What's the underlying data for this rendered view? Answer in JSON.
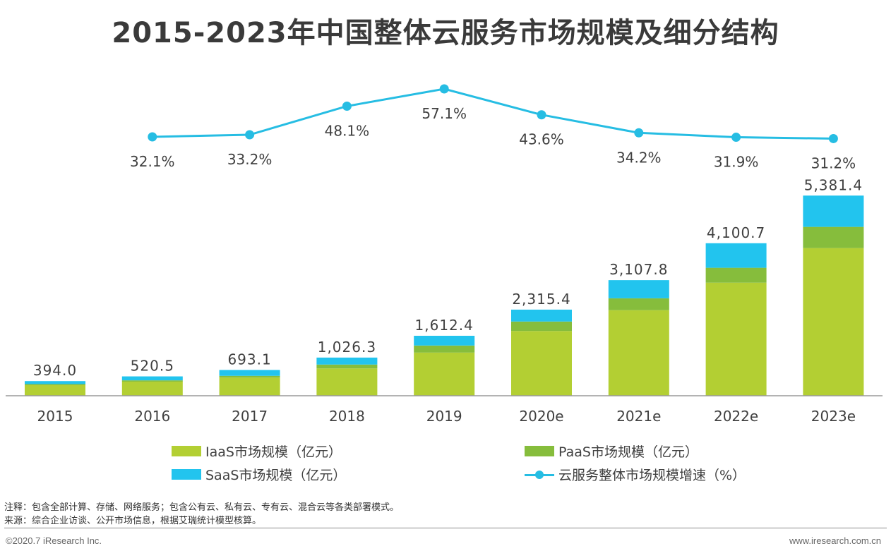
{
  "title": "2015-2023年中国整体云服务市场规模及细分结构",
  "colors": {
    "iaas": "#b3cf33",
    "paas": "#86bd3c",
    "saas": "#22c4ee",
    "growth": "#26bde3",
    "axis": "#9a9a9a",
    "text": "#404040"
  },
  "chart_data": {
    "type": "bar",
    "stacked": true,
    "title": "2015-2023年中国整体云服务市场规模及细分结构",
    "categories": [
      "2015",
      "2016",
      "2017",
      "2018",
      "2019",
      "2020e",
      "2021e",
      "2022e",
      "2023e"
    ],
    "series": [
      {
        "name": "IaaS市场规模（亿元）",
        "values": [
          285,
          380,
          488,
          735,
          1160,
          1740,
          2300,
          3040,
          3970
        ]
      },
      {
        "name": "PaaS市场规模（亿元）",
        "values": [
          29,
          34,
          48,
          104,
          190,
          255,
          320,
          400,
          570
        ]
      },
      {
        "name": "SaaS市场规模（亿元）",
        "values": [
          80,
          106.5,
          157.1,
          187.3,
          262.4,
          320.4,
          487.8,
          660.7,
          841.4
        ]
      }
    ],
    "totals": [
      394.0,
      520.5,
      693.1,
      1026.3,
      1612.4,
      2315.4,
      3107.8,
      4100.7,
      5381.4
    ],
    "total_labels": [
      "394.0",
      "520.5",
      "693.1",
      "1,026.3",
      "1,612.4",
      "2,315.4",
      "3,107.8",
      "4,100.7",
      "5,381.4"
    ],
    "growth": {
      "name": "云服务整体市场规模增速（%）",
      "categories": [
        "2016",
        "2017",
        "2018",
        "2019",
        "2020e",
        "2021e",
        "2022e",
        "2023e"
      ],
      "values": [
        32.1,
        33.2,
        48.1,
        57.1,
        43.6,
        34.2,
        31.9,
        31.2
      ],
      "labels": [
        "32.1%",
        "33.2%",
        "48.1%",
        "57.1%",
        "43.6%",
        "34.2%",
        "31.9%",
        "31.2%"
      ]
    },
    "ylim": [
      0,
      5500
    ],
    "legend_position": "bottom"
  },
  "legend": {
    "iaas": "IaaS市场规模（亿元）",
    "paas": "PaaS市场规模（亿元）",
    "saas": "SaaS市场规模（亿元）",
    "growth": "云服务整体市场规模增速（%）"
  },
  "notes": {
    "note": "注释：包含全部计算、存储、网络服务；包含公有云、私有云、专有云、混合云等各类部署模式。",
    "source": "来源：综合企业访谈、公开市场信息，根据艾瑞统计模型核算。"
  },
  "footer": {
    "copyright": "©2020.7 iResearch Inc.",
    "website": "www.iresearch.com.cn"
  }
}
